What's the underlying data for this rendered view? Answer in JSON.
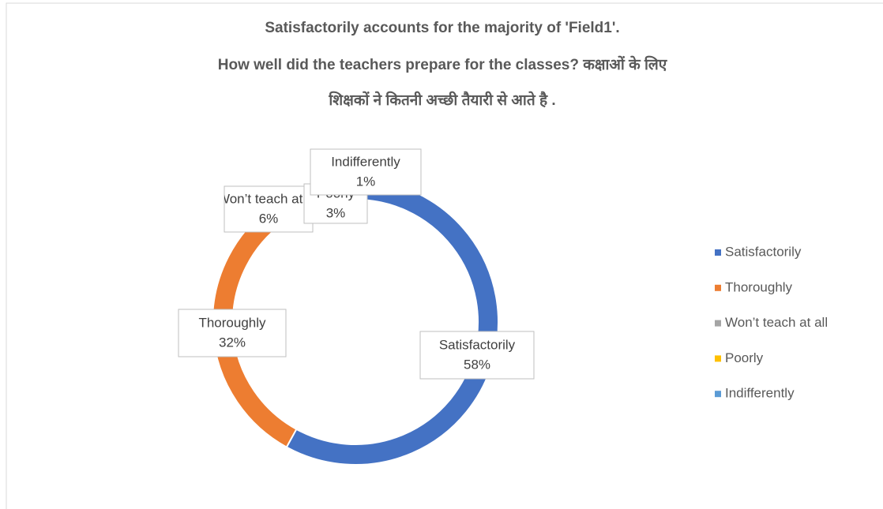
{
  "chart_data": {
    "type": "donut",
    "title": [
      "Satisfactorily accounts for the majority of 'Field1'.",
      "How well did the teachers prepare for the classes? कक्षाओं के लिए",
      "शिक्षकों ने कितनी अच्छी तैयारी से आते है ."
    ],
    "categories": [
      "Satisfactorily",
      "Thoroughly",
      "Won’t teach at all",
      "Poorly",
      "Indifferently"
    ],
    "values": [
      58,
      32,
      6,
      3,
      1
    ],
    "value_labels": [
      "58%",
      "32%",
      "6%",
      "3%",
      "1%"
    ],
    "colors": [
      "#4472c4",
      "#ed7d31",
      "#a5a5a5",
      "#ffc000",
      "#5b9bd5"
    ],
    "legend": "right"
  }
}
